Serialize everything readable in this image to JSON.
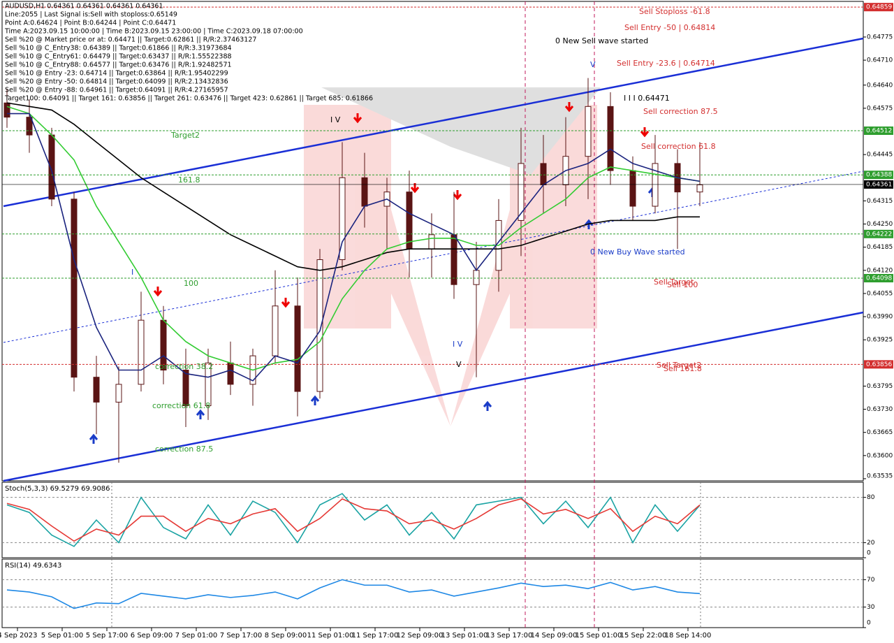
{
  "chart_data": [
    {
      "type": "candlestick",
      "info_lines": [
        "AUDUSD,H1 0.64361 0.64361 0.64361 0.64361",
        "Line:2055 | Last Signal is:Sell with stoploss:0.65149",
        "Point A:0.64624 | Point B:0.64244 | Point C:0.64471",
        "Time A:2023.09.15 10:00:00 | Time B:2023.09.15 23:00:00 | Time C:2023.09.18 07:00:00",
        "Sell %20 @ Market price or at: 0.64471 || Target:0.62861 || R/R:2.37463127",
        "Sell %10 @ C_Entry38: 0.64389 || Target:0.61866 || R/R:3.31973684",
        "Sell %10 @ C_Entry61: 0.64479 || Target:0.63437 || R/R:1.55522388",
        "Sell %10 @ C_Entry88: 0.64577 || Target:0.63476 || R/R:1.92482571",
        "Sell %10 @ Entry -23: 0.64714 || Target:0.63864 || R/R:1.95402299",
        "Sell %20 @ Entry -50: 0.64814 || Target:0.64099 || R/R:2.13432836",
        "Sell %20 @ Entry -88: 0.64961 || Target:0.64091 || R/R:4.27165957",
        "Target100: 0.64091 || Target 161: 0.63856 || Target 261: 0.63476 || Target 423: 0.62861 || Target 685: 0.61866"
      ],
      "x_labels": [
        "4 Sep 2023",
        "5 Sep 01:00",
        "5 Sep 17:00",
        "6 Sep 09:00",
        "7 Sep 01:00",
        "7 Sep 17:00",
        "8 Sep 09:00",
        "11 Sep 01:00",
        "11 Sep 17:00",
        "12 Sep 09:00",
        "13 Sep 01:00",
        "13 Sep 17:00",
        "14 Sep 09:00",
        "15 Sep 01:00",
        "15 Sep 22:00",
        "18 Sep 14:00"
      ],
      "ylim": [
        0.63529,
        0.64875
      ],
      "yticks": [
        0.64775,
        {
          "value": 0.6471,
          "label": "0.64710"
        },
        {
          "value": 0.6464,
          "label": "0.64640"
        },
        0.64575,
        0.64445,
        0.64315,
        {
          "value": 0.6425,
          "label": "0.64250"
        },
        0.64185,
        {
          "value": 0.6412,
          "label": "0.64120"
        },
        0.64055,
        {
          "value": 0.6399,
          "label": "0.63990"
        },
        0.63925,
        0.63795,
        {
          "value": 0.6373,
          "label": "0.63730"
        },
        0.63665,
        {
          "value": 0.636,
          "label": "0.63600"
        },
        0.63535
      ],
      "levels": [
        0.64859,
        0.64512,
        0.64388,
        0.64361,
        0.64222,
        0.64098,
        0.63856
      ],
      "level_colors": [
        "#d32f2f",
        "#2e9e2e",
        "#2e9e2e",
        "#000000",
        "#2e9e2e",
        "#2e9e2e",
        "#d32f2f"
      ],
      "candle_color": "#5a1414",
      "open": [
        0.6459,
        0.6455,
        0.645,
        0.6432,
        0.6382,
        0.6375,
        0.638,
        0.6398,
        0.6384,
        0.6374,
        0.6386,
        0.638,
        0.6388,
        0.6402,
        0.6378,
        0.6415,
        0.6438,
        0.643,
        0.6434,
        0.6418,
        0.6422,
        0.6408,
        0.6412,
        0.6426,
        0.6442,
        0.6436,
        0.6444,
        0.6458,
        0.644,
        0.643,
        0.6442,
        0.6434
      ],
      "high": [
        0.6463,
        0.646,
        0.6452,
        0.6434,
        0.6388,
        0.6385,
        0.6406,
        0.6402,
        0.639,
        0.639,
        0.6392,
        0.639,
        0.6412,
        0.641,
        0.6418,
        0.6448,
        0.6445,
        0.6438,
        0.644,
        0.6428,
        0.6434,
        0.642,
        0.6432,
        0.6452,
        0.645,
        0.6455,
        0.6466,
        0.6462,
        0.6444,
        0.645,
        0.6446,
        0.6448
      ],
      "low": [
        0.6452,
        0.6445,
        0.643,
        0.6378,
        0.6366,
        0.6358,
        0.6378,
        0.638,
        0.6368,
        0.637,
        0.6377,
        0.6374,
        0.6386,
        0.6371,
        0.6376,
        0.6412,
        0.6424,
        0.6418,
        0.641,
        0.641,
        0.6404,
        0.6382,
        0.6406,
        0.6416,
        0.6428,
        0.643,
        0.6432,
        0.6436,
        0.6426,
        0.6428,
        0.6418,
        0.643
      ],
      "close": [
        0.6455,
        0.645,
        0.6432,
        0.6382,
        0.6375,
        0.638,
        0.6398,
        0.6384,
        0.6374,
        0.6386,
        0.638,
        0.6388,
        0.6402,
        0.6378,
        0.6415,
        0.6438,
        0.643,
        0.6434,
        0.6418,
        0.6422,
        0.6408,
        0.6412,
        0.6426,
        0.6442,
        0.6436,
        0.6444,
        0.6458,
        0.644,
        0.643,
        0.6442,
        0.6434,
        0.6436
      ],
      "series": [
        {
          "color": "#000000",
          "values": [
            0.6459,
            0.6458,
            0.6457,
            0.6453,
            0.6448,
            0.6443,
            0.6438,
            0.6434,
            0.643,
            0.6426,
            0.6422,
            0.6419,
            0.6416,
            0.6413,
            0.6412,
            0.6413,
            0.6415,
            0.6417,
            0.6418,
            0.6418,
            0.6418,
            0.6418,
            0.6418,
            0.6419,
            0.6421,
            0.6423,
            0.6425,
            0.6426,
            0.6426,
            0.6426,
            0.6427,
            0.6427
          ]
        },
        {
          "color": "#33cc33",
          "values": [
            0.6458,
            0.6456,
            0.645,
            0.6443,
            0.643,
            0.642,
            0.641,
            0.6398,
            0.6392,
            0.6388,
            0.6386,
            0.6384,
            0.6386,
            0.6387,
            0.6392,
            0.6404,
            0.6412,
            0.6418,
            0.642,
            0.6421,
            0.6421,
            0.6419,
            0.6419,
            0.6424,
            0.6428,
            0.6432,
            0.6438,
            0.6441,
            0.644,
            0.6439,
            0.6438,
            0.6437
          ]
        },
        {
          "color": "#1a237e",
          "values": [
            0.6456,
            0.6456,
            0.644,
            0.6415,
            0.6396,
            0.6384,
            0.6384,
            0.6388,
            0.6383,
            0.6382,
            0.6384,
            0.6381,
            0.6388,
            0.6386,
            0.6395,
            0.642,
            0.643,
            0.6432,
            0.6428,
            0.6425,
            0.6422,
            0.6412,
            0.642,
            0.6428,
            0.6436,
            0.644,
            0.6442,
            0.6446,
            0.6442,
            0.644,
            0.6438,
            0.6437
          ]
        }
      ],
      "annotations": [
        {
          "text": "Sell Stoploss -61.8",
          "color": "#d32f2f"
        },
        {
          "text": "Sell Entry -50 | 0.64814",
          "color": "#d32f2f"
        },
        {
          "text": "Sell Entry -23.6 | 0.64714",
          "color": "#d32f2f"
        },
        {
          "text": "0 New Sell wave started",
          "color": "#000000"
        },
        {
          "text": "I I I 0.64471",
          "color": "#000000"
        },
        {
          "text": "Sell correction 87.5",
          "color": "#d32f2f"
        },
        {
          "text": "Sell correction 61.8",
          "color": "#d32f2f"
        },
        {
          "text": "Target2",
          "color": "#2e9e2e"
        },
        {
          "text": "161.8",
          "color": "#2e9e2e"
        },
        {
          "text": "100",
          "color": "#2e9e2e"
        },
        {
          "text": "0 New Buy Wave started",
          "color": "#1a3cc8"
        },
        {
          "text": "Sell Target",
          "color": "#d32f2f"
        },
        {
          "text": "Sell 100",
          "color": "#d32f2f"
        },
        {
          "text": "Sell Target2",
          "color": "#d32f2f"
        },
        {
          "text": "Sell 161.8",
          "color": "#d32f2f"
        },
        {
          "text": "I V",
          "color": "#000000"
        },
        {
          "text": "I V",
          "color": "#1a3cc8"
        },
        {
          "text": "V",
          "color": "#1a3cc8"
        },
        {
          "text": "V",
          "color": "#000000"
        },
        {
          "text": "I",
          "color": "#1a3cc8"
        },
        {
          "text": "correction 38.2",
          "color": "#2e9e2e"
        },
        {
          "text": "correction 61.8",
          "color": "#2e9e2e"
        },
        {
          "text": "correction 87.5",
          "color": "#2e9e2e"
        }
      ]
    },
    {
      "type": "line",
      "title": "Stoch(5,3,3) 69.5279 69.9086",
      "ylim": [
        0,
        100
      ],
      "yticks": [
        80,
        20,
        0
      ],
      "series": [
        {
          "color": "#1aa3a3",
          "values": [
            70,
            60,
            30,
            15,
            50,
            20,
            80,
            40,
            25,
            70,
            30,
            75,
            60,
            20,
            70,
            85,
            50,
            70,
            30,
            60,
            25,
            70,
            75,
            80,
            45,
            75,
            40,
            80,
            20,
            70,
            35,
            69.5279
          ]
        },
        {
          "color": "#e53935",
          "values": [
            72,
            64,
            42,
            22,
            38,
            30,
            55,
            55,
            35,
            52,
            45,
            58,
            65,
            35,
            52,
            78,
            65,
            62,
            45,
            50,
            38,
            52,
            70,
            78,
            58,
            64,
            52,
            65,
            35,
            55,
            45,
            69.9086
          ]
        }
      ]
    },
    {
      "type": "line",
      "title": "RSI(14) 49.6343",
      "ylim": [
        0,
        100
      ],
      "yticks": [
        70,
        30,
        0
      ],
      "series": [
        {
          "color": "#1e88e5",
          "values": [
            55,
            52,
            45,
            28,
            36,
            35,
            50,
            46,
            42,
            48,
            44,
            47,
            52,
            42,
            58,
            70,
            62,
            62,
            52,
            55,
            46,
            52,
            58,
            65,
            60,
            62,
            57,
            66,
            55,
            60,
            52,
            49.6343
          ]
        }
      ]
    }
  ]
}
